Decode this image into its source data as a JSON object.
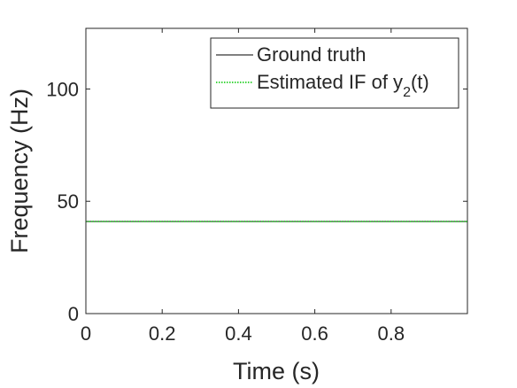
{
  "chart_data": {
    "type": "line",
    "title": "",
    "xlabel": "Time (s)",
    "ylabel": "Frequency (Hz)",
    "xlim": [
      0,
      1
    ],
    "ylim": [
      0,
      127
    ],
    "xticks": [
      0,
      0.2,
      0.4,
      0.6,
      0.8
    ],
    "xtick_labels": [
      "0",
      "0.2",
      "0.4",
      "0.6",
      "0.8"
    ],
    "yticks": [
      0,
      50,
      100
    ],
    "ytick_labels": [
      "0",
      "50",
      "100"
    ],
    "grid": false,
    "legend_position": "top-right",
    "series": [
      {
        "name": "Ground truth",
        "color": "#000000",
        "style": "solid",
        "x": [
          0,
          1
        ],
        "y": [
          41,
          41
        ]
      },
      {
        "name": "Estimated IF of y",
        "name_subscript": "2",
        "name_suffix": "(t)",
        "color": "#00c800",
        "style": "dotted",
        "x": [
          0,
          1
        ],
        "y": [
          41,
          41
        ]
      }
    ]
  }
}
